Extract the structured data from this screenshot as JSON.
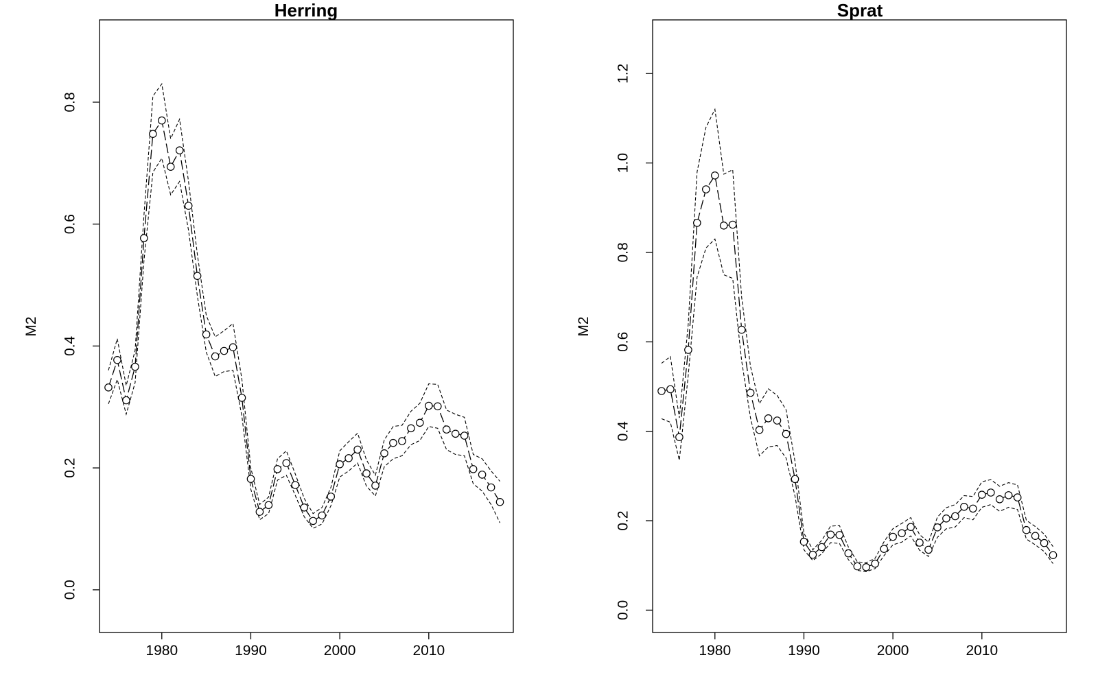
{
  "chart_data": [
    {
      "type": "line",
      "title": "Herring",
      "xlabel": "",
      "ylabel": "M2",
      "xlim": [
        1973,
        2019.5
      ],
      "ylim": [
        -0.07,
        0.935
      ],
      "xticks": [
        1980,
        1990,
        2000,
        2010
      ],
      "xtick_labels": [
        "1980",
        "1990",
        "2000",
        "2010"
      ],
      "yticks": [
        0.0,
        0.2,
        0.4,
        0.6,
        0.8
      ],
      "ytick_labels": [
        "0.0",
        "0.2",
        "0.4",
        "0.6",
        "0.8"
      ],
      "grid": false,
      "x": [
        1974,
        1975,
        1976,
        1977,
        1978,
        1979,
        1980,
        1981,
        1982,
        1983,
        1984,
        1985,
        1986,
        1987,
        1988,
        1989,
        1990,
        1991,
        1992,
        1993,
        1994,
        1995,
        1996,
        1997,
        1998,
        1999,
        2000,
        2001,
        2002,
        2003,
        2004,
        2005,
        2006,
        2007,
        2008,
        2009,
        2010,
        2011,
        2012,
        2013,
        2014,
        2015,
        2016,
        2017,
        2018
      ],
      "series": [
        {
          "role": "estimate",
          "values": [
            0.332,
            0.377,
            0.311,
            0.366,
            0.577,
            0.748,
            0.77,
            0.694,
            0.721,
            0.63,
            0.515,
            0.419,
            0.383,
            0.392,
            0.398,
            0.315,
            0.182,
            0.128,
            0.139,
            0.198,
            0.208,
            0.172,
            0.135,
            0.113,
            0.122,
            0.153,
            0.206,
            0.216,
            0.23,
            0.191,
            0.171,
            0.224,
            0.241,
            0.244,
            0.265,
            0.274,
            0.302,
            0.301,
            0.263,
            0.256,
            0.253,
            0.198,
            0.189,
            0.168,
            0.144
          ]
        },
        {
          "role": "upper",
          "values": [
            0.36,
            0.412,
            0.335,
            0.393,
            0.615,
            0.81,
            0.83,
            0.74,
            0.772,
            0.67,
            0.55,
            0.45,
            0.415,
            0.425,
            0.437,
            0.345,
            0.2,
            0.14,
            0.152,
            0.215,
            0.228,
            0.19,
            0.15,
            0.125,
            0.135,
            0.168,
            0.228,
            0.243,
            0.257,
            0.213,
            0.188,
            0.246,
            0.268,
            0.27,
            0.293,
            0.306,
            0.338,
            0.337,
            0.295,
            0.288,
            0.283,
            0.222,
            0.215,
            0.195,
            0.178
          ]
        },
        {
          "role": "lower",
          "values": [
            0.305,
            0.345,
            0.288,
            0.34,
            0.54,
            0.685,
            0.708,
            0.648,
            0.67,
            0.59,
            0.482,
            0.39,
            0.35,
            0.358,
            0.36,
            0.285,
            0.165,
            0.115,
            0.125,
            0.18,
            0.188,
            0.155,
            0.12,
            0.101,
            0.108,
            0.138,
            0.185,
            0.195,
            0.208,
            0.17,
            0.154,
            0.202,
            0.215,
            0.22,
            0.238,
            0.245,
            0.268,
            0.265,
            0.23,
            0.222,
            0.22,
            0.174,
            0.162,
            0.14,
            0.11
          ]
        }
      ]
    },
    {
      "type": "line",
      "title": "Sprat",
      "xlabel": "",
      "ylabel": "M2",
      "xlim": [
        1973,
        2019.5
      ],
      "ylim": [
        -0.05,
        1.32
      ],
      "xticks": [
        1980,
        1990,
        2000,
        2010
      ],
      "xtick_labels": [
        "1980",
        "1990",
        "2000",
        "2010"
      ],
      "yticks": [
        0.0,
        0.2,
        0.4,
        0.6,
        0.8,
        1.0,
        1.2
      ],
      "ytick_labels": [
        "0.0",
        "0.2",
        "0.4",
        "0.6",
        "0.8",
        "1.0",
        "1.2"
      ],
      "grid": false,
      "x": [
        1974,
        1975,
        1976,
        1977,
        1978,
        1979,
        1980,
        1981,
        1982,
        1983,
        1984,
        1985,
        1986,
        1987,
        1988,
        1989,
        1990,
        1991,
        1992,
        1993,
        1994,
        1995,
        1996,
        1997,
        1998,
        1999,
        2000,
        2001,
        2002,
        2003,
        2004,
        2005,
        2006,
        2007,
        2008,
        2009,
        2010,
        2011,
        2012,
        2013,
        2014,
        2015,
        2016,
        2017,
        2018
      ],
      "series": [
        {
          "role": "estimate",
          "values": [
            0.49,
            0.494,
            0.387,
            0.582,
            0.866,
            0.941,
            0.972,
            0.86,
            0.862,
            0.627,
            0.486,
            0.403,
            0.429,
            0.424,
            0.394,
            0.293,
            0.153,
            0.124,
            0.141,
            0.169,
            0.168,
            0.127,
            0.098,
            0.096,
            0.104,
            0.137,
            0.164,
            0.172,
            0.186,
            0.151,
            0.135,
            0.185,
            0.205,
            0.21,
            0.231,
            0.227,
            0.258,
            0.263,
            0.248,
            0.257,
            0.252,
            0.179,
            0.166,
            0.15,
            0.123
          ]
        },
        {
          "role": "upper",
          "values": [
            0.552,
            0.567,
            0.43,
            0.64,
            0.98,
            1.08,
            1.12,
            0.975,
            0.985,
            0.7,
            0.545,
            0.462,
            0.495,
            0.48,
            0.448,
            0.332,
            0.172,
            0.135,
            0.156,
            0.188,
            0.189,
            0.141,
            0.108,
            0.106,
            0.116,
            0.153,
            0.182,
            0.194,
            0.207,
            0.169,
            0.152,
            0.208,
            0.229,
            0.236,
            0.256,
            0.254,
            0.287,
            0.292,
            0.277,
            0.285,
            0.28,
            0.201,
            0.187,
            0.17,
            0.142
          ]
        },
        {
          "role": "lower",
          "values": [
            0.428,
            0.42,
            0.335,
            0.525,
            0.745,
            0.81,
            0.83,
            0.75,
            0.742,
            0.558,
            0.43,
            0.345,
            0.365,
            0.368,
            0.34,
            0.255,
            0.135,
            0.111,
            0.126,
            0.151,
            0.149,
            0.113,
            0.089,
            0.086,
            0.093,
            0.122,
            0.146,
            0.152,
            0.166,
            0.134,
            0.12,
            0.163,
            0.182,
            0.186,
            0.207,
            0.202,
            0.23,
            0.236,
            0.221,
            0.23,
            0.225,
            0.159,
            0.146,
            0.131,
            0.104
          ]
        }
      ]
    }
  ]
}
